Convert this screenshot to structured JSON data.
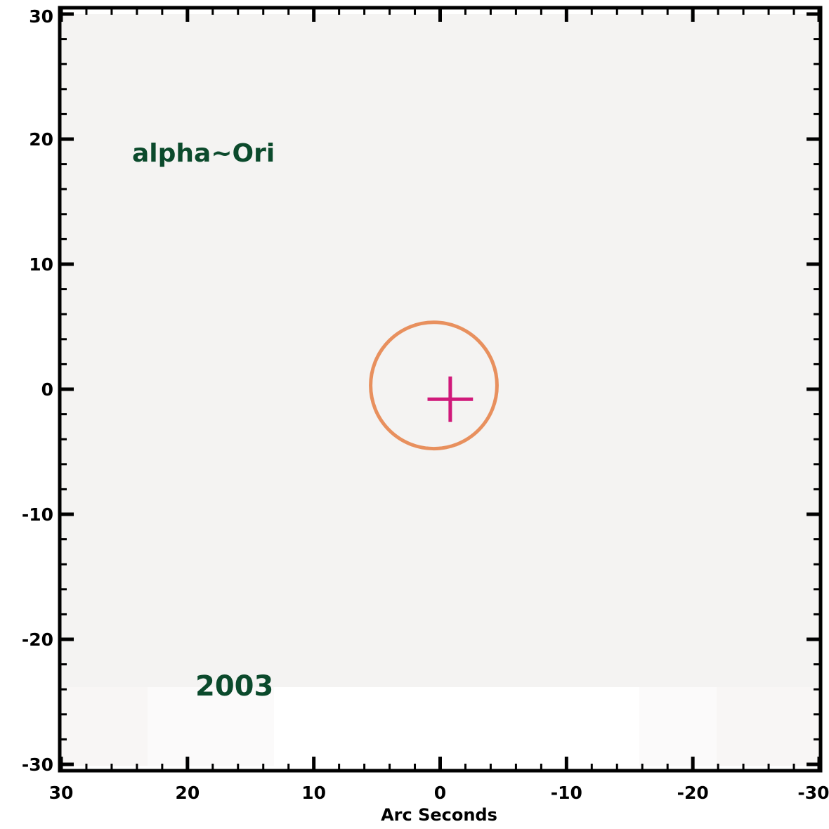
{
  "chart_data": {
    "type": "scatter",
    "xlabel": "Arc Seconds",
    "ylabel": "",
    "xlim": [
      30,
      -30
    ],
    "ylim": [
      -30,
      30
    ],
    "x_ticks": [
      "30",
      "20",
      "10",
      "0",
      "-10",
      "-20",
      "-30"
    ],
    "y_ticks": [
      "30",
      "20",
      "10",
      "0",
      "-10",
      "-20",
      "-30"
    ],
    "grid": false,
    "background_color": "#f4f3f2",
    "annotations": {
      "star_name": "alpha~Ori",
      "year": "2003"
    },
    "circle": {
      "center": [
        0.5,
        0.3
      ],
      "radius": 5,
      "color": "#e8905e"
    },
    "marker": {
      "x": -0.8,
      "y": -0.8,
      "size": 3.6,
      "color": "#d0197a",
      "symbol": "plus"
    },
    "text_color": "#0b4a2c"
  }
}
